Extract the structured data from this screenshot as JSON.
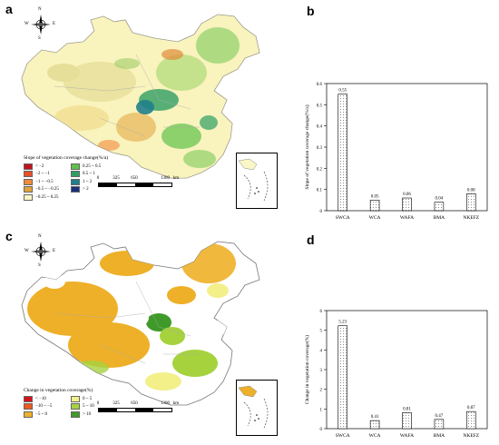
{
  "panels": {
    "a": {
      "letter": "a",
      "legend_title": "Slope of vegetation coverage change(%/a)",
      "legend": [
        {
          "label": "< −2",
          "color": "#c0141c"
        },
        {
          "label": "0.25 ~ 0.5",
          "color": "#5fc24a"
        },
        {
          "label": "−2 ~ −1",
          "color": "#e8502a"
        },
        {
          "label": "0.5 ~ 1",
          "color": "#2f9e64"
        },
        {
          "label": "−1 ~ −0.5",
          "color": "#f08a3c"
        },
        {
          "label": "1 ~ 2",
          "color": "#1f7f8a"
        },
        {
          "label": "−0.5 ~ −0.25",
          "color": "#e2a23a"
        },
        {
          "label": "> 2",
          "color": "#1c2f7a"
        },
        {
          "label": "−0.25 ~ 0.25",
          "color": "#fbf6c6"
        }
      ]
    },
    "b": {
      "letter": "b"
    },
    "c": {
      "letter": "c",
      "legend_title": "Change in vegetation coverage(%)",
      "legend": [
        {
          "label": "< −10",
          "color": "#d4141c"
        },
        {
          "label": "0 ~ 5",
          "color": "#f3f08a"
        },
        {
          "label": "−10 ~ −5",
          "color": "#ee5a1e"
        },
        {
          "label": "5 ~ 10",
          "color": "#a6d23e"
        },
        {
          "label": "−5 ~ 0",
          "color": "#eeb028"
        },
        {
          "label": "> 10",
          "color": "#3f9a2a"
        }
      ]
    },
    "d": {
      "letter": "d"
    }
  },
  "compass": {
    "n": "N",
    "s": "S",
    "e": "E",
    "w": "W"
  },
  "scale": {
    "ticks": [
      "0",
      "325",
      "650",
      "1300"
    ],
    "unit": "km"
  },
  "chart_data": [
    {
      "type": "bar",
      "categories": [
        "SWCA",
        "WCA",
        "WAFA",
        "BMA",
        "NKEFZ"
      ],
      "values": [
        0.55,
        0.05,
        0.06,
        0.04,
        0.08
      ],
      "value_labels": [
        "0.55",
        "0.05",
        "0.06",
        "0.04",
        "0.08"
      ],
      "ylabel": "Slope of vegetation coverage change(%/a)",
      "ylim": [
        0,
        0.6
      ],
      "yticks": [
        "0",
        "0.1",
        "0.2",
        "0.3",
        "0.4",
        "0.5",
        "0.6"
      ]
    },
    {
      "type": "bar",
      "categories": [
        "SWCA",
        "WCA",
        "WAFA",
        "BMA",
        "NKEFZ"
      ],
      "values": [
        5.23,
        0.41,
        0.81,
        0.47,
        0.87
      ],
      "value_labels": [
        "5.23",
        "0.41",
        "0.81",
        "0.47",
        "0.87"
      ],
      "ylabel": "Change in vegetation coverage(%)",
      "ylim": [
        0,
        6
      ],
      "yticks": [
        "0",
        "1",
        "2",
        "3",
        "4",
        "5",
        "6"
      ]
    }
  ]
}
